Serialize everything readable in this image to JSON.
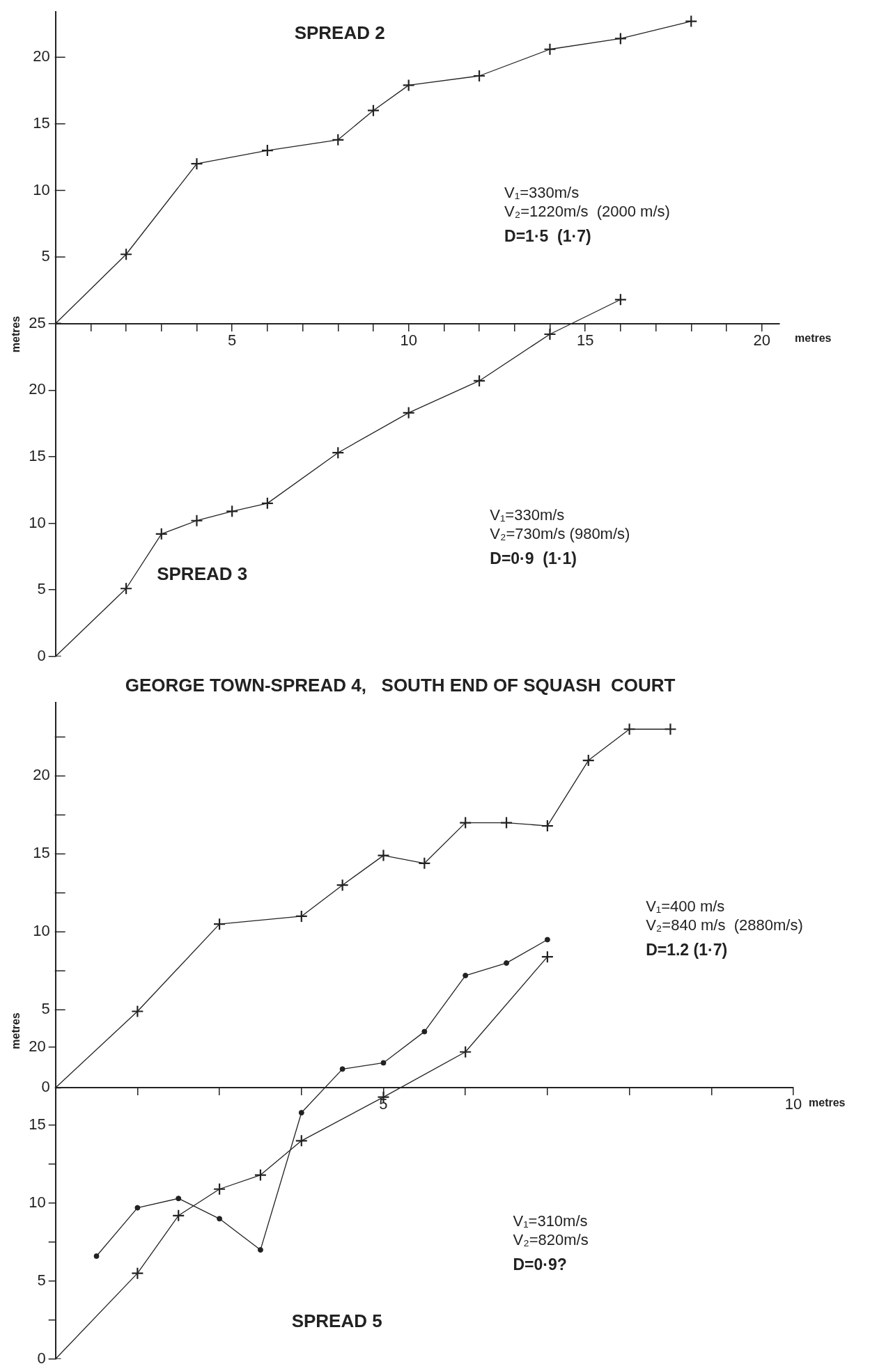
{
  "chart_data": [
    {
      "type": "line",
      "xlabel": "metres",
      "ylabel": "metres",
      "legend": false,
      "line_style": "solid",
      "xlim": [
        0,
        20.5
      ],
      "xticks": [
        {
          "value": 1,
          "label": null
        },
        {
          "value": 2,
          "label": null
        },
        {
          "value": 3,
          "label": null
        },
        {
          "value": 4,
          "label": null
        },
        5,
        {
          "value": 6,
          "label": null
        },
        {
          "value": 7,
          "label": null
        },
        {
          "value": 8,
          "label": null
        },
        {
          "value": 9,
          "label": null
        },
        10,
        {
          "value": 11,
          "label": null
        },
        {
          "value": 12,
          "label": null
        },
        {
          "value": 13,
          "label": null
        },
        {
          "value": 14,
          "label": null
        },
        15,
        {
          "value": 16,
          "label": null
        },
        {
          "value": 17,
          "label": null
        },
        {
          "value": 18,
          "label": null
        },
        {
          "value": 19,
          "label": null
        },
        20
      ],
      "ylim": [
        0,
        48.4
      ],
      "yticks": [
        0,
        5,
        10,
        15,
        20,
        25
      ],
      "y2lim": [
        -25,
        23.4
      ],
      "y2ticks": [
        5,
        10,
        15,
        20
      ],
      "annotations": [
        "V₁=330m/s",
        "V₂=1220m/s  (2000 m/s)",
        "D=1·5  (1·7)",
        "V₁=330m/s",
        "V₂=730m/s (980m/s)",
        "D=0·9  (1·1)"
      ],
      "series": [
        {
          "name": "SPREAD 2",
          "color": "#222222",
          "axis": "y2",
          "marker": "cross",
          "x": [
            0,
            2,
            4,
            6,
            8,
            9,
            10,
            12,
            14,
            16,
            18
          ],
          "values": [
            0,
            5.2,
            12.0,
            13.0,
            13.8,
            16.0,
            17.9,
            18.6,
            20.6,
            21.4,
            22.7
          ]
        },
        {
          "name": "SPREAD 3",
          "color": "#222222",
          "axis": "y",
          "marker": "cross",
          "x": [
            0,
            2,
            3,
            4,
            5,
            6,
            8,
            10,
            12,
            14,
            16
          ],
          "values": [
            0,
            5.1,
            9.2,
            10.2,
            10.9,
            11.5,
            15.3,
            18.3,
            20.7,
            24.2,
            26.8
          ]
        }
      ]
    },
    {
      "type": "line",
      "title": "GEORGE TOWN-SPREAD 4,   SOUTH END OF SQUASH  COURT",
      "xlabel": "metres",
      "ylabel": "metres",
      "legend": false,
      "line_style": "solid",
      "xlim": [
        1,
        10
      ],
      "xticks": [
        {
          "value": 2,
          "label": null
        },
        {
          "value": 3,
          "label": null
        },
        {
          "value": 4,
          "label": null
        },
        5,
        {
          "value": 6,
          "label": null
        },
        {
          "value": 7,
          "label": null
        },
        {
          "value": 8,
          "label": null
        },
        {
          "value": 9,
          "label": null
        },
        10
      ],
      "ylim": [
        0,
        42.1
      ],
      "yticks": [
        0,
        {
          "value": 2.5,
          "label": null
        },
        5,
        {
          "value": 7.5,
          "label": null
        },
        10,
        {
          "value": 12.5,
          "label": null
        },
        15,
        20
      ],
      "y2lim": [
        -17.4,
        24.7
      ],
      "y2ticks": [
        0,
        5,
        {
          "value": 7.5,
          "label": null
        },
        10,
        {
          "value": 12.5,
          "label": null
        },
        15,
        {
          "value": 17.5,
          "label": null
        },
        20,
        {
          "value": 22.5,
          "label": null
        }
      ],
      "annotations": [
        "V₁=400 m/s",
        "V₂=840 m/s  (2880m/s)",
        "D=1.2 (1·7)",
        "V₁=310m/s",
        "V₂=820m/s",
        "D=0·9?"
      ],
      "series": [
        {
          "color": "#222222",
          "axis": "y2",
          "marker": "cross",
          "x": [
            1,
            2,
            3,
            4,
            4.5,
            5,
            5.5,
            6,
            6.5,
            7,
            7.5,
            8,
            8.5
          ],
          "values": [
            0,
            4.9,
            10.5,
            11.0,
            13.0,
            14.9,
            14.4,
            17.0,
            17.0,
            16.8,
            21.0,
            23.0,
            23.0
          ]
        },
        {
          "name": "SPREAD 5",
          "color": "#222222",
          "axis": "y",
          "marker": "circle",
          "x": [
            1.5,
            2,
            2.5,
            3,
            3.5,
            4,
            4.5,
            5,
            5.5,
            6,
            6.5,
            7
          ],
          "values": [
            6.6,
            9.7,
            10.3,
            9.0,
            7.0,
            15.8,
            18.6,
            19.0,
            21.0,
            24.6,
            25.4,
            26.9
          ]
        },
        {
          "color": "#222222",
          "axis": "y",
          "marker": "cross",
          "x": [
            1,
            2,
            2.5,
            3,
            3.5,
            4,
            5,
            6,
            7
          ],
          "values": [
            0,
            5.5,
            9.2,
            10.9,
            11.8,
            14.0,
            16.8,
            19.7,
            25.8
          ]
        }
      ]
    }
  ]
}
